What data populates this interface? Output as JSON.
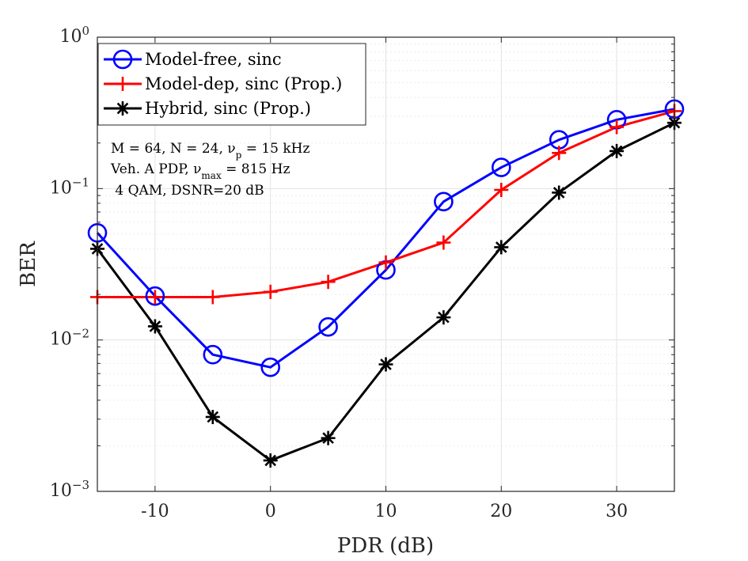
{
  "chart_data": {
    "type": "line",
    "title": "",
    "xlabel": "PDR (dB)",
    "ylabel": "BER",
    "xlim": [
      -15,
      35
    ],
    "ylim": [
      0.001,
      1
    ],
    "yscale": "log",
    "grid": true,
    "x": [
      -15,
      -10,
      -5,
      0,
      5,
      10,
      15,
      20,
      25,
      30,
      35
    ],
    "x_tick_labels": [
      "-10",
      "0",
      "10",
      "20",
      "30"
    ],
    "x_ticks": [
      -10,
      0,
      10,
      20,
      30
    ],
    "y_tick_labels": [
      {
        "base": "10",
        "exp": "0",
        "value": 1
      },
      {
        "base": "10",
        "exp": "−1",
        "value": 0.1
      },
      {
        "base": "10",
        "exp": "−2",
        "value": 0.01
      },
      {
        "base": "10",
        "exp": "−3",
        "value": 0.001
      }
    ],
    "series": [
      {
        "name": "Model-free, sinc",
        "color": "#0000ff",
        "marker": "circle",
        "values": [
          0.051,
          0.0195,
          0.008,
          0.0066,
          0.0122,
          0.029,
          0.082,
          0.138,
          0.21,
          0.285,
          0.335
        ]
      },
      {
        "name": "Model-dep, sinc (Prop.)",
        "color": "#ff0000",
        "marker": "plus",
        "values": [
          0.0192,
          0.0192,
          0.0192,
          0.0208,
          0.0242,
          0.0325,
          0.044,
          0.098,
          0.172,
          0.255,
          0.325
        ]
      },
      {
        "name": "Hybrid, sinc (Prop.)",
        "color": "#000000",
        "marker": "asterisk",
        "values": [
          0.04,
          0.0123,
          0.0031,
          0.0016,
          0.00225,
          0.0069,
          0.0141,
          0.041,
          0.094,
          0.177,
          0.272
        ]
      }
    ],
    "legend_position": "top-left",
    "annotation_lines": [
      "M = 64, N = 24, ν",
      "Veh. A PDP, ν",
      " 4 QAM, DSNR=20 dB"
    ],
    "annotation_sub": [
      "p",
      "max"
    ],
    "annotation_tail": [
      " = 15 kHz",
      " = 815 Hz"
    ]
  }
}
